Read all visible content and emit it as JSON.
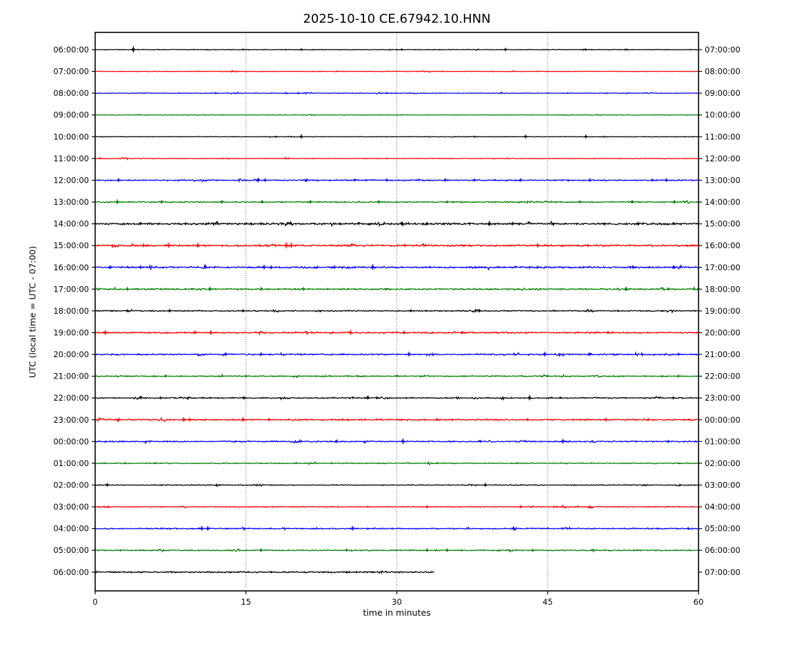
{
  "chart_data": {
    "type": "line",
    "subtype": "helicorder-dayplot",
    "title": "2025-10-10 CE.67942.10.HNN",
    "xlabel": "time in minutes",
    "ylabel": "UTC (local time = UTC - 07:00)",
    "x_ticks": [
      0,
      15,
      30,
      45,
      60
    ],
    "x_range": [
      0,
      60
    ],
    "grid": {
      "vertical_dotted_at": [
        15,
        30,
        45
      ]
    },
    "legend_position": "none",
    "trace_color_cycle": [
      "#000000",
      "#ff0000",
      "#0000ff",
      "#008000"
    ],
    "rows": [
      {
        "left": "06:00:00",
        "right": "07:00:00",
        "color": "#000000",
        "amp": 0.5,
        "end": 60,
        "spikes": [
          [
            3.8,
            4
          ],
          [
            14.7,
            1.3
          ],
          [
            20.5,
            1.8
          ],
          [
            30.5,
            1.5
          ],
          [
            40.8,
            2.2
          ],
          [
            48.8,
            1.5
          ]
        ]
      },
      {
        "left": "07:00:00",
        "right": "08:00:00",
        "color": "#ff0000",
        "amp": 0.45,
        "end": 60,
        "spikes": [
          [
            24,
            1
          ],
          [
            44,
            0.9
          ]
        ]
      },
      {
        "left": "08:00:00",
        "right": "09:00:00",
        "color": "#0000ff",
        "amp": 0.5,
        "end": 60,
        "spikes": [
          [
            12,
            1.4
          ],
          [
            19,
            1.4
          ],
          [
            20.2,
            1.4
          ],
          [
            29,
            1.4
          ],
          [
            47,
            1
          ]
        ]
      },
      {
        "left": "09:00:00",
        "right": "10:00:00",
        "color": "#008000",
        "amp": 0.45,
        "end": 60,
        "spikes": [
          [
            30.5,
            1
          ],
          [
            50,
            0.9
          ]
        ]
      },
      {
        "left": "10:00:00",
        "right": "11:00:00",
        "color": "#000000",
        "amp": 0.4,
        "end": 60,
        "spikes": [
          [
            20.5,
            2.8
          ],
          [
            42.8,
            2.4
          ],
          [
            48.8,
            2.4
          ]
        ]
      },
      {
        "left": "11:00:00",
        "right": "12:00:00",
        "color": "#ff0000",
        "amp": 0.5,
        "end": 60,
        "spikes": [
          [
            0.5,
            1.4
          ],
          [
            29,
            1
          ]
        ]
      },
      {
        "left": "12:00:00",
        "right": "13:00:00",
        "color": "#0000ff",
        "amp": 0.85,
        "end": 60,
        "spikes": [
          [
            2.3,
            2.5
          ],
          [
            16.2,
            3
          ],
          [
            16.9,
            2.4
          ],
          [
            21,
            2
          ],
          [
            25.8,
            2
          ],
          [
            29,
            2
          ],
          [
            34.8,
            2.4
          ],
          [
            37.7,
            2
          ],
          [
            42.3,
            2.4
          ],
          [
            49.2,
            2.4
          ],
          [
            55.4,
            2
          ],
          [
            56.8,
            2.4
          ]
        ]
      },
      {
        "left": "13:00:00",
        "right": "14:00:00",
        "color": "#008000",
        "amp": 0.85,
        "end": 60,
        "spikes": [
          [
            2.2,
            3
          ],
          [
            6.6,
            2.4
          ],
          [
            12.6,
            2.4
          ],
          [
            16.6,
            2.4
          ],
          [
            21.4,
            2.4
          ],
          [
            28.2,
            2.4
          ],
          [
            35,
            2
          ],
          [
            48.2,
            2
          ],
          [
            53.4,
            2.4
          ],
          [
            57.6,
            2.4
          ]
        ]
      },
      {
        "left": "14:00:00",
        "right": "15:00:00",
        "color": "#000000",
        "amp": 1.35,
        "end": 60,
        "spikes": [
          [
            4.5,
            2
          ],
          [
            9,
            2
          ],
          [
            16.5,
            2
          ],
          [
            30.5,
            2.4
          ],
          [
            33,
            2
          ],
          [
            39.2,
            3.4
          ],
          [
            41.5,
            2.4
          ],
          [
            54,
            2.4
          ],
          [
            57.5,
            2
          ]
        ]
      },
      {
        "left": "15:00:00",
        "right": "16:00:00",
        "color": "#ff0000",
        "amp": 1.2,
        "end": 60,
        "spikes": [
          [
            4.8,
            2.4
          ],
          [
            7.3,
            3
          ],
          [
            10.2,
            3
          ],
          [
            19,
            4
          ],
          [
            19.5,
            3.4
          ],
          [
            30.8,
            2
          ],
          [
            44,
            3
          ],
          [
            49,
            2
          ]
        ]
      },
      {
        "left": "16:00:00",
        "right": "17:00:00",
        "color": "#0000ff",
        "amp": 1.2,
        "end": 60,
        "spikes": [
          [
            1.5,
            2.4
          ],
          [
            4.5,
            2.4
          ],
          [
            11,
            2.4
          ],
          [
            16.8,
            3
          ],
          [
            17.5,
            2.4
          ],
          [
            23.8,
            2.4
          ],
          [
            27.6,
            3.6
          ],
          [
            44,
            2
          ],
          [
            53.5,
            2.4
          ],
          [
            57.5,
            2.4
          ]
        ]
      },
      {
        "left": "17:00:00",
        "right": "18:00:00",
        "color": "#008000",
        "amp": 1.0,
        "end": 60,
        "spikes": [
          [
            3.2,
            2.4
          ],
          [
            11.4,
            3
          ],
          [
            16.5,
            2.4
          ],
          [
            20.7,
            2.4
          ],
          [
            52.8,
            3
          ],
          [
            57,
            2
          ]
        ]
      },
      {
        "left": "18:00:00",
        "right": "19:00:00",
        "color": "#000000",
        "amp": 0.8,
        "end": 60,
        "spikes": [
          [
            3.2,
            2
          ],
          [
            7.4,
            2.4
          ],
          [
            14.7,
            2
          ],
          [
            31.4,
            2
          ],
          [
            38.2,
            2.4
          ],
          [
            52,
            1.4
          ]
        ]
      },
      {
        "left": "19:00:00",
        "right": "20:00:00",
        "color": "#ff0000",
        "amp": 1.0,
        "end": 60,
        "spikes": [
          [
            1,
            3
          ],
          [
            9.9,
            2.4
          ],
          [
            11.5,
            3
          ],
          [
            25.4,
            3
          ],
          [
            30.7,
            2.4
          ],
          [
            36.5,
            2
          ],
          [
            51,
            2
          ]
        ]
      },
      {
        "left": "20:00:00",
        "right": "21:00:00",
        "color": "#0000ff",
        "amp": 0.9,
        "end": 60,
        "spikes": [
          [
            13,
            2.4
          ],
          [
            16.5,
            2.4
          ],
          [
            31.2,
            3
          ],
          [
            44.7,
            3
          ],
          [
            58,
            2
          ]
        ]
      },
      {
        "left": "21:00:00",
        "right": "22:00:00",
        "color": "#008000",
        "amp": 0.8,
        "end": 60,
        "spikes": [
          [
            7,
            2
          ],
          [
            15,
            2
          ],
          [
            30,
            1.4
          ],
          [
            45,
            1.4
          ],
          [
            58,
            2
          ]
        ]
      },
      {
        "left": "22:00:00",
        "right": "23:00:00",
        "color": "#000000",
        "amp": 0.8,
        "end": 60,
        "spikes": [
          [
            6.5,
            2
          ],
          [
            14.8,
            2.4
          ],
          [
            28,
            2
          ],
          [
            43.2,
            3.4
          ],
          [
            57.5,
            2
          ]
        ]
      },
      {
        "left": "23:00:00",
        "right": "00:00:00",
        "color": "#ff0000",
        "amp": 1.0,
        "end": 60,
        "spikes": [
          [
            8.8,
            3
          ],
          [
            9.4,
            2.4
          ],
          [
            14.7,
            3
          ],
          [
            17.3,
            2.2
          ],
          [
            34,
            2
          ],
          [
            43,
            2
          ],
          [
            50.8,
            2.4
          ],
          [
            55,
            2
          ]
        ]
      },
      {
        "left": "00:00:00",
        "right": "01:00:00",
        "color": "#0000ff",
        "amp": 0.9,
        "end": 60,
        "spikes": [
          [
            24,
            2.4
          ],
          [
            30.6,
            3.6
          ],
          [
            38.3,
            2
          ],
          [
            46.5,
            3
          ],
          [
            57,
            2
          ]
        ]
      },
      {
        "left": "01:00:00",
        "right": "02:00:00",
        "color": "#008000",
        "amp": 0.7,
        "end": 60,
        "spikes": [
          [
            3,
            1.4
          ],
          [
            6,
            1.4
          ],
          [
            20,
            1.4
          ],
          [
            34,
            1.4
          ],
          [
            42,
            1.4
          ]
        ]
      },
      {
        "left": "02:00:00",
        "right": "03:00:00",
        "color": "#000000",
        "amp": 0.6,
        "end": 60,
        "spikes": [
          [
            1.2,
            2.4
          ],
          [
            38.8,
            2.4
          ]
        ]
      },
      {
        "left": "03:00:00",
        "right": "04:00:00",
        "color": "#ff0000",
        "amp": 0.7,
        "end": 60,
        "spikes": [
          [
            33,
            2
          ],
          [
            42.3,
            2
          ],
          [
            48,
            1.4
          ]
        ]
      },
      {
        "left": "04:00:00",
        "right": "05:00:00",
        "color": "#0000ff",
        "amp": 0.8,
        "end": 60,
        "spikes": [
          [
            10.6,
            3
          ],
          [
            11.2,
            3
          ],
          [
            25.6,
            3
          ],
          [
            41.6,
            2.4
          ]
        ]
      },
      {
        "left": "05:00:00",
        "right": "06:00:00",
        "color": "#008000",
        "amp": 0.8,
        "end": 60,
        "spikes": [
          [
            2.5,
            1.4
          ],
          [
            16.5,
            2.4
          ],
          [
            25,
            2
          ],
          [
            33,
            2.4
          ],
          [
            35,
            2.4
          ],
          [
            43.5,
            2
          ]
        ]
      },
      {
        "left": "06:00:00",
        "right": "07:00:00",
        "color": "#000000",
        "amp": 1.0,
        "end": 33.7,
        "spikes": [
          [
            17.5,
            1.4
          ],
          [
            25,
            1.4
          ]
        ]
      }
    ]
  }
}
